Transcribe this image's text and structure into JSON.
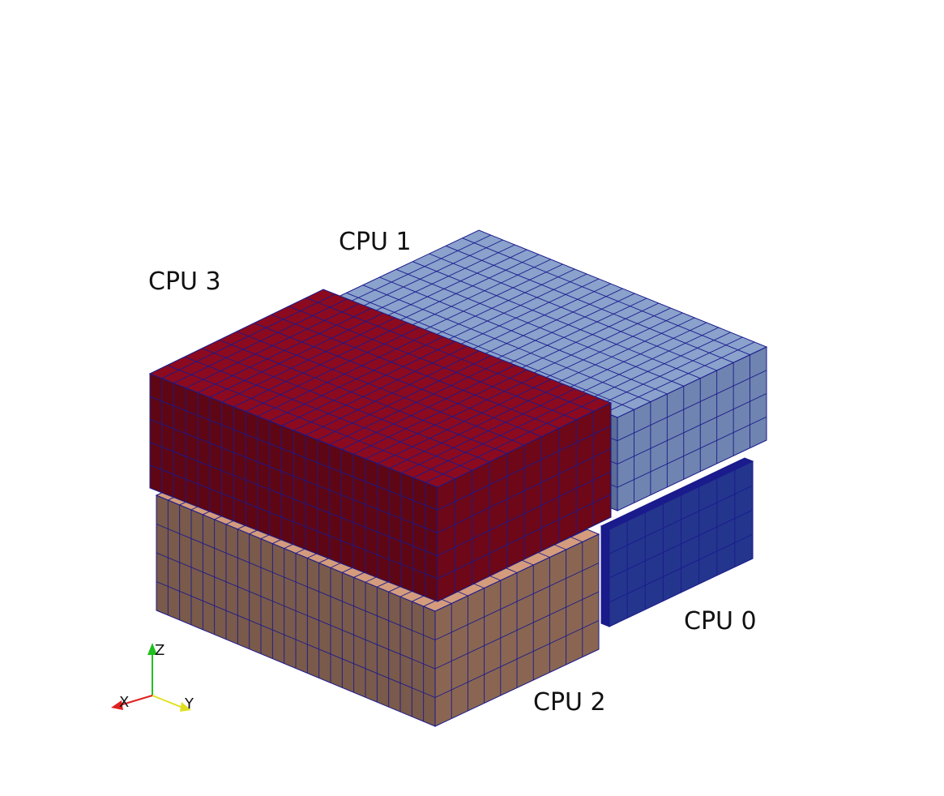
{
  "scene": {
    "background_color": "#ffffff",
    "mesh_edge_color": "#1a1a8c"
  },
  "blocks": [
    {
      "id": "cpu-0",
      "label": "CPU 0",
      "colors": {
        "top": "#2e3f9e",
        "front": "#1c2a7a",
        "side": "#24358d"
      },
      "cells": {
        "along_length": 10,
        "along_width": 8,
        "vertical": 4
      }
    },
    {
      "id": "cpu-1",
      "label": "CPU 1",
      "colors": {
        "top": "#8aa2cc",
        "front": "#5a6e99",
        "side": "#6f84b0"
      },
      "cells": {
        "along_length": 24,
        "along_width": 9,
        "vertical": 4
      }
    },
    {
      "id": "cpu-2",
      "label": "CPU 2",
      "colors": {
        "top": "#d49c7c",
        "front": "#7a5a4a",
        "side": "#8a6652"
      },
      "cells": {
        "along_length": 24,
        "along_width": 10,
        "vertical": 4
      }
    },
    {
      "id": "cpu-3",
      "label": "CPU 3",
      "colors": {
        "top": "#8c0a1f",
        "front": "#5e0614",
        "side": "#6e0718"
      },
      "cells": {
        "along_length": 24,
        "along_width": 10,
        "vertical": 5
      }
    }
  ],
  "orientation_axes": {
    "x": {
      "label": "X",
      "color": "#e02020"
    },
    "y": {
      "label": "Y",
      "color": "#e0e020"
    },
    "z": {
      "label": "Z",
      "color": "#20c020"
    }
  }
}
